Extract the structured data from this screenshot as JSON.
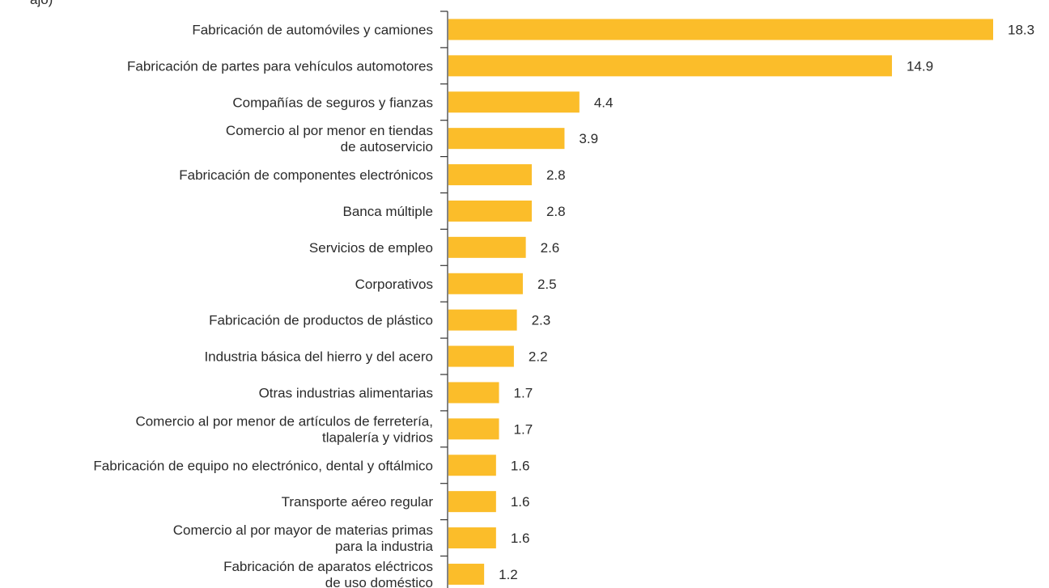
{
  "chart_data": {
    "type": "bar",
    "orientation": "horizontal",
    "title_fragment": "ajo)",
    "bar_color": "#fbbd2a",
    "value_labels": true,
    "grid": false,
    "xlim": [
      0,
      18.3
    ],
    "categories": [
      [
        "Fabricación de automóviles y camiones"
      ],
      [
        "Fabricación de partes para vehículos automotores"
      ],
      [
        "Compañías de seguros y fianzas"
      ],
      [
        "Comercio al por menor en tiendas",
        "de autoservicio"
      ],
      [
        "Fabricación de componentes electrónicos"
      ],
      [
        "Banca múltiple"
      ],
      [
        "Servicios de empleo"
      ],
      [
        "Corporativos"
      ],
      [
        "Fabricación de productos de plástico"
      ],
      [
        "Industria básica del hierro y del acero"
      ],
      [
        "Otras industrias alimentarias"
      ],
      [
        "Comercio al por menor de artículos de ferretería,",
        "tlapalería y vidrios"
      ],
      [
        "Fabricación de equipo no electrónico, dental y oftálmico"
      ],
      [
        "Transporte aéreo regular"
      ],
      [
        "Comercio al por mayor de materias primas",
        "para la industria"
      ],
      [
        "Fabricación de aparatos eléctricos",
        "de uso doméstico"
      ]
    ],
    "values": [
      18.3,
      14.9,
      4.4,
      3.9,
      2.8,
      2.8,
      2.6,
      2.5,
      2.3,
      2.2,
      1.7,
      1.7,
      1.6,
      1.6,
      1.6,
      1.2
    ]
  }
}
